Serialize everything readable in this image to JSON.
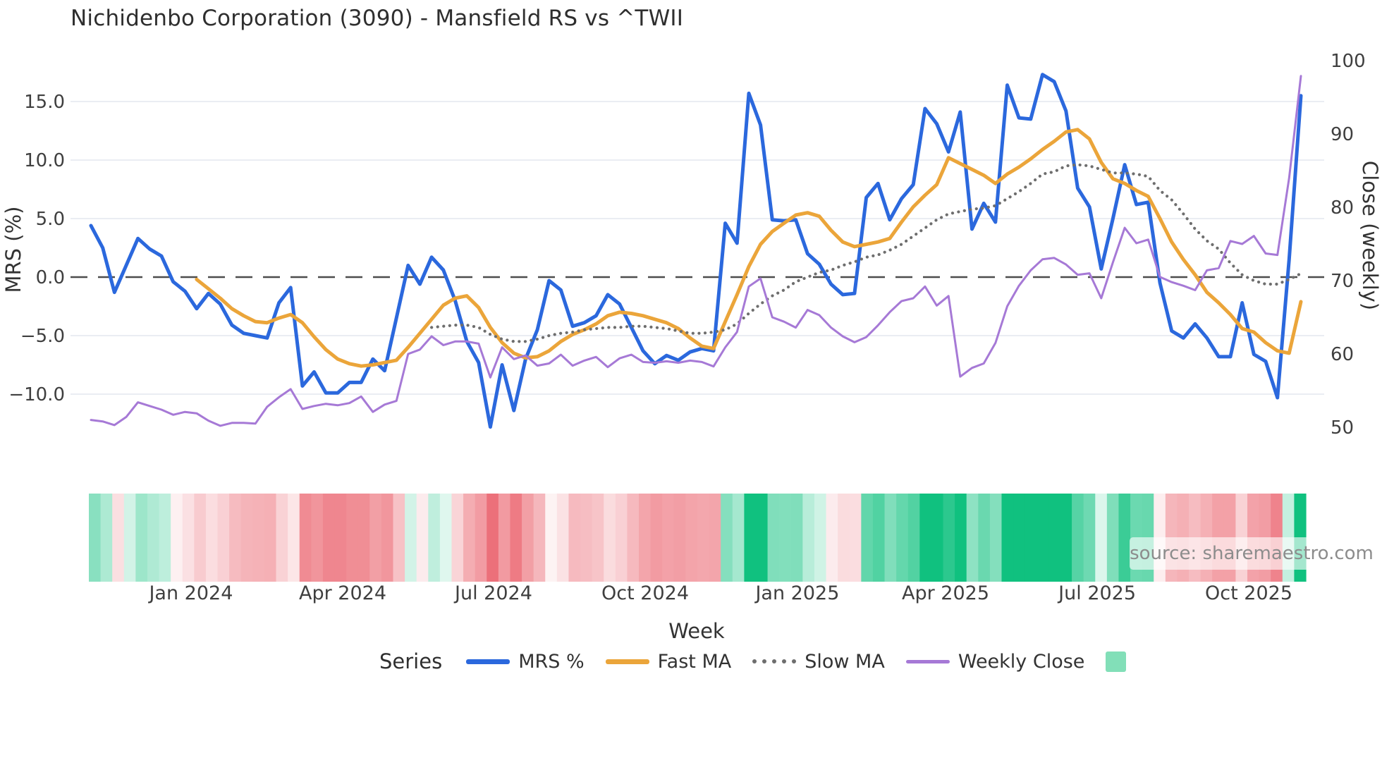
{
  "page": {
    "title": "Nichidenbo Corporation (3090) - Mansfield RS vs ^TWII"
  },
  "chart_data": {
    "type": "line",
    "title": "Nichidenbo Corporation (3090) - Mansfield RS vs ^TWII",
    "xlabel": "Week",
    "ylabel_left": "MRS (%)",
    "ylabel_right": "Close (weekly)",
    "legend_title": "Series",
    "source_note": "source: sharemaestro.com",
    "n_weeks": 104,
    "ylim_left": [
      -14.5,
      18.5
    ],
    "ylim_right": [
      49,
      100
    ],
    "grid": "horizontal-only",
    "zero_line_value": 0,
    "y_left_ticks": [
      {
        "value": 15,
        "label": "15.0"
      },
      {
        "value": 10,
        "label": "10.0"
      },
      {
        "value": 5,
        "label": "5.0"
      },
      {
        "value": 0,
        "label": "0.0"
      },
      {
        "value": -5,
        "label": "−5.0"
      },
      {
        "value": -10,
        "label": "−10.0"
      }
    ],
    "y_right_ticks": [
      {
        "value": 100,
        "label": "100"
      },
      {
        "value": 90,
        "label": "90"
      },
      {
        "value": 80,
        "label": "80"
      },
      {
        "value": 70,
        "label": "70"
      },
      {
        "value": 60,
        "label": "60"
      },
      {
        "value": 50,
        "label": "50"
      }
    ],
    "x_tick_labels": [
      {
        "label": "Jan 2024",
        "week": 8.52
      },
      {
        "label": "Apr 2024",
        "week": 21.43
      },
      {
        "label": "Jul 2024",
        "week": 34.27
      },
      {
        "label": "Oct 2024",
        "week": 47.18
      },
      {
        "label": "Jan 2025",
        "week": 60.14
      },
      {
        "label": "Apr 2025",
        "week": 72.75
      },
      {
        "label": "Jul 2025",
        "week": 85.66
      },
      {
        "label": "Oct 2025",
        "week": 98.56
      }
    ],
    "series": [
      {
        "name": "MRS %",
        "axis": "left",
        "color": "#2b68dd",
        "width": 5,
        "style": "solid",
        "values": [
          4.4,
          2.5,
          -1.3,
          1.0,
          3.3,
          2.4,
          1.8,
          -0.4,
          -1.2,
          -2.7,
          -1.4,
          -2.3,
          -4.1,
          -4.8,
          -5.0,
          -5.2,
          -2.2,
          -0.9,
          -9.3,
          -8.1,
          -9.9,
          -9.9,
          -9.0,
          -9.0,
          -7.0,
          -8.0,
          -3.5,
          1.0,
          -0.6,
          1.7,
          0.6,
          -2.0,
          -5.5,
          -7.3,
          -12.8,
          -7.5,
          -11.4,
          -7.0,
          -4.5,
          -0.3,
          -1.1,
          -4.2,
          -3.9,
          -3.3,
          -1.5,
          -2.3,
          -4.3,
          -6.3,
          -7.4,
          -6.7,
          -7.1,
          -6.4,
          -6.1,
          -6.3,
          4.6,
          2.9,
          15.7,
          13.0,
          4.9,
          4.8,
          4.9,
          2.0,
          1.1,
          -0.6,
          -1.5,
          -1.4,
          6.8,
          8.0,
          4.9,
          6.7,
          7.9,
          14.4,
          13.1,
          10.7,
          14.1,
          4.1,
          6.3,
          4.7,
          16.4,
          13.6,
          13.5,
          17.3,
          16.7,
          14.2,
          7.6,
          6.0,
          0.7,
          5.0,
          9.6,
          6.2,
          6.4,
          -0.5,
          -4.6,
          -5.2,
          -4.0,
          -5.2,
          -6.8,
          -6.8,
          -2.2,
          -6.6,
          -7.2,
          -10.3,
          1.5,
          15.5
        ]
      },
      {
        "name": "Fast MA",
        "axis": "left",
        "color": "#eba53a",
        "width": 5,
        "style": "solid",
        "values": [
          null,
          null,
          null,
          null,
          null,
          null,
          null,
          null,
          null,
          -0.2,
          -1.0,
          -1.8,
          -2.7,
          -3.3,
          -3.8,
          -3.9,
          -3.5,
          -3.2,
          -3.9,
          -5.1,
          -6.2,
          -7.0,
          -7.4,
          -7.6,
          -7.5,
          -7.3,
          -7.1,
          -6.0,
          -4.8,
          -3.6,
          -2.4,
          -1.8,
          -1.6,
          -2.6,
          -4.3,
          -5.6,
          -6.5,
          -6.9,
          -6.8,
          -6.3,
          -5.5,
          -4.9,
          -4.5,
          -4.0,
          -3.3,
          -3.0,
          -3.1,
          -3.3,
          -3.6,
          -3.9,
          -4.4,
          -5.2,
          -5.9,
          -6.1,
          -3.8,
          -1.5,
          0.9,
          2.8,
          3.9,
          4.6,
          5.3,
          5.5,
          5.2,
          4.0,
          3.0,
          2.6,
          2.8,
          3.0,
          3.3,
          4.7,
          6.0,
          7.0,
          7.9,
          10.2,
          9.7,
          9.2,
          8.7,
          8.0,
          8.8,
          9.4,
          10.1,
          10.9,
          11.6,
          12.4,
          12.6,
          11.8,
          9.8,
          8.4,
          8.0,
          7.4,
          6.9,
          5.0,
          3.0,
          1.5,
          0.2,
          -1.3,
          -2.2,
          -3.2,
          -4.4,
          -4.7,
          -5.6,
          -6.3,
          -6.5,
          -2.1
        ]
      },
      {
        "name": "Slow MA",
        "axis": "left",
        "color": "#6e6e6e",
        "width": 4.2,
        "style": "dotted",
        "values": [
          null,
          null,
          null,
          null,
          null,
          null,
          null,
          null,
          null,
          null,
          null,
          null,
          null,
          null,
          null,
          null,
          null,
          null,
          null,
          null,
          null,
          null,
          null,
          null,
          null,
          null,
          null,
          null,
          null,
          -4.3,
          -4.2,
          -4.1,
          -4.1,
          -4.3,
          -4.9,
          -5.3,
          -5.5,
          -5.5,
          -5.3,
          -5.0,
          -4.8,
          -4.7,
          -4.5,
          -4.4,
          -4.3,
          -4.3,
          -4.2,
          -4.2,
          -4.3,
          -4.4,
          -4.6,
          -4.8,
          -4.8,
          -4.7,
          -4.5,
          -4.0,
          -3.1,
          -2.3,
          -1.6,
          -1.1,
          -0.4,
          0.0,
          0.4,
          0.6,
          1.0,
          1.3,
          1.7,
          1.9,
          2.3,
          2.8,
          3.5,
          4.2,
          4.9,
          5.4,
          5.6,
          5.8,
          5.9,
          6.1,
          6.7,
          7.3,
          8.0,
          8.8,
          9.0,
          9.5,
          9.6,
          9.5,
          9.2,
          8.9,
          8.9,
          8.8,
          8.6,
          7.4,
          6.6,
          5.4,
          4.1,
          3.1,
          2.4,
          1.2,
          0.2,
          -0.3,
          -0.6,
          -0.6,
          -0.2,
          0.3
        ]
      },
      {
        "name": "Weekly Close",
        "axis": "right",
        "color": "#a679d6",
        "width": 3,
        "style": "solid",
        "values": [
          51.0,
          50.8,
          50.3,
          51.4,
          53.4,
          52.9,
          52.4,
          51.7,
          52.1,
          51.9,
          50.9,
          50.2,
          50.6,
          50.6,
          50.5,
          52.8,
          54.1,
          55.2,
          52.5,
          52.9,
          53.2,
          53.0,
          53.3,
          54.2,
          52.1,
          53.1,
          53.6,
          60.0,
          60.6,
          62.4,
          61.2,
          61.7,
          61.7,
          61.4,
          56.8,
          60.9,
          59.3,
          59.8,
          58.4,
          58.7,
          59.9,
          58.4,
          59.1,
          59.6,
          58.2,
          59.4,
          59.9,
          58.9,
          58.8,
          59.0,
          58.8,
          59.1,
          58.9,
          58.3,
          60.9,
          63.0,
          69.2,
          70.3,
          65.0,
          64.4,
          63.6,
          66.0,
          65.3,
          63.6,
          62.4,
          61.6,
          62.3,
          63.9,
          65.7,
          67.2,
          67.6,
          69.2,
          66.6,
          67.9,
          56.9,
          58.1,
          58.7,
          61.5,
          66.5,
          69.3,
          71.4,
          72.9,
          73.1,
          72.2,
          70.8,
          71.0,
          67.6,
          72.5,
          77.2,
          75.1,
          75.6,
          70.5,
          69.8,
          69.3,
          68.7,
          71.4,
          71.7,
          75.4,
          75.0,
          76.1,
          73.7,
          73.5,
          84.0,
          97.9
        ]
      }
    ],
    "heatmap": {
      "encodes": "weekly MRS % value (green = positive, red = negative, white = near zero)",
      "positive_color": "#10c17f",
      "negative_color": "#ec6f79",
      "legend_swatch_color": "#82dfb8"
    }
  }
}
